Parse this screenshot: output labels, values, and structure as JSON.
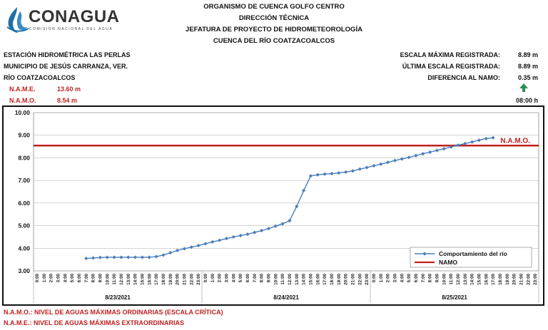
{
  "header": {
    "logo_text": "CONAGUA",
    "logo_subtext": "COMISIÓN NACIONAL DEL AGUA",
    "line1": "ORGANISMO DE CUENCA GOLFO CENTRO",
    "line2": "DIRECCIÓN TÉCNICA",
    "line3": "JEFATURA DE PROYECTO DE HIDROMETEOROLOGÍA",
    "line4": "CUENCA DEL RÍO COATZACOALCOS"
  },
  "station": {
    "name": "ESTACIÓN HIDROMÉTRICA LAS PERLAS",
    "municipality": "MUNICIPIO DE JESÚS CARRANZA, VER.",
    "river": "RÍO COATZACOALCOS",
    "name_label": "N.A.M.E.",
    "name_value": "13.60 m",
    "namo_label": "N.A.M.O.",
    "namo_value": "8.54 m"
  },
  "stats": {
    "max_label": "ESCALA MÁXIMA REGISTRADA:",
    "max_value": "8.89 m",
    "last_label": "ÚLTIMA ESCALA REGISTRADA:",
    "last_value": "8.89 m",
    "diff_label": "DIFERENCIA AL NAMO:",
    "diff_value": "0.35 m",
    "trend_icon": "arrow-up-icon",
    "time": "08:00 h",
    "trend_color": "#2e8b57"
  },
  "footer": {
    "namo_def": "N.A.M.O.: NIVEL DE AGUAS MÁXIMAS ORDINARIAS (ESCALA CRÍTICA)",
    "name_def": "N.A.M.E.: NIVEL DE AGUAS MÁXIMAS EXTRAORDINARIAS"
  },
  "chart_data": {
    "type": "line",
    "title": "",
    "xlabel": "",
    "ylabel": "",
    "ylim": [
      3.0,
      10.0
    ],
    "yticks": [
      "3.00",
      "4.00",
      "5.00",
      "6.00",
      "7.00",
      "8.00",
      "9.00",
      "10.00"
    ],
    "grid": true,
    "legend_position": "bottom-right",
    "date_labels": [
      "8/23/2021",
      "8/24/2021",
      "8/25/2021"
    ],
    "hour_labels": [
      "0:00",
      "1:00",
      "2:00",
      "3:00",
      "4:00",
      "5:00",
      "6:00",
      "7:00",
      "8:00",
      "9:00",
      "10:00",
      "11:00",
      "12:00",
      "13:00",
      "14:00",
      "15:00",
      "16:00",
      "17:00",
      "18:00",
      "19:00",
      "20:00",
      "21:00",
      "22:00",
      "23:00"
    ],
    "series": [
      {
        "name": "Comportamiento del río",
        "color": "#4a7ebb",
        "start_hour": 7,
        "values": [
          3.55,
          3.57,
          3.59,
          3.6,
          3.6,
          3.6,
          3.6,
          3.6,
          3.6,
          3.6,
          3.63,
          3.7,
          3.8,
          3.9,
          3.98,
          4.05,
          4.12,
          4.2,
          4.28,
          4.35,
          4.43,
          4.5,
          4.56,
          4.62,
          4.7,
          4.78,
          4.87,
          4.98,
          5.08,
          5.22,
          5.85,
          6.55,
          7.2,
          7.25,
          7.28,
          7.3,
          7.33,
          7.37,
          7.42,
          7.5,
          7.57,
          7.65,
          7.72,
          7.8,
          7.88,
          7.95,
          8.02,
          8.1,
          8.18,
          8.25,
          8.33,
          8.4,
          8.48,
          8.56,
          8.63,
          8.7,
          8.78,
          8.85,
          8.89
        ]
      },
      {
        "name": "NAMO",
        "color": "#c0201f",
        "value": 8.54,
        "label": "N.A.M.O."
      }
    ]
  }
}
